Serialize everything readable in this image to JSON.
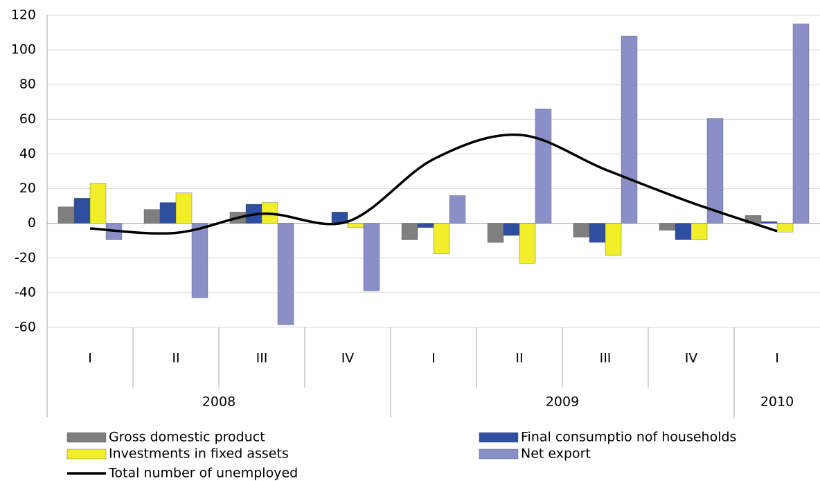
{
  "chart_data": {
    "type": "bar",
    "year_groups": [
      {
        "label": "2008",
        "quarters": [
          "I",
          "II",
          "III",
          "IV"
        ]
      },
      {
        "label": "2009",
        "quarters": [
          "I",
          "II",
          "III",
          "IV"
        ]
      },
      {
        "label": "2010",
        "quarters": [
          "I"
        ]
      }
    ],
    "series": [
      {
        "name": "Gross domestic product",
        "color": "#7f7f7f",
        "values": [
          9.5,
          8,
          6.5,
          0,
          -9.5,
          -11,
          -8,
          -4,
          4.5
        ]
      },
      {
        "name": "Final consumptio nof households",
        "color": "#2e4ea0",
        "values": [
          14.5,
          12,
          11,
          6.5,
          -2.5,
          -7,
          -11,
          -9.5,
          1
        ]
      },
      {
        "name": "Investments in fixed assets",
        "color": "#f2ee2a",
        "values": [
          23,
          17.5,
          12,
          -2.5,
          -17.5,
          -23,
          -18.5,
          -9.5,
          -5
        ]
      },
      {
        "name": "Net export",
        "color": "#8b8fc8",
        "values": [
          -9.5,
          -43,
          -58.5,
          -39,
          16,
          66,
          108,
          60.5,
          115
        ]
      },
      {
        "name": "Total number of unemployed",
        "type": "line",
        "color": "#000000",
        "values": [
          -3,
          -5.5,
          5.5,
          1,
          37,
          51,
          31,
          12,
          -4.5
        ]
      }
    ],
    "ylim": [
      -60,
      120
    ],
    "yticks": [
      -60,
      -40,
      -20,
      0,
      20,
      40,
      60,
      80,
      100,
      120
    ],
    "grid": true
  }
}
